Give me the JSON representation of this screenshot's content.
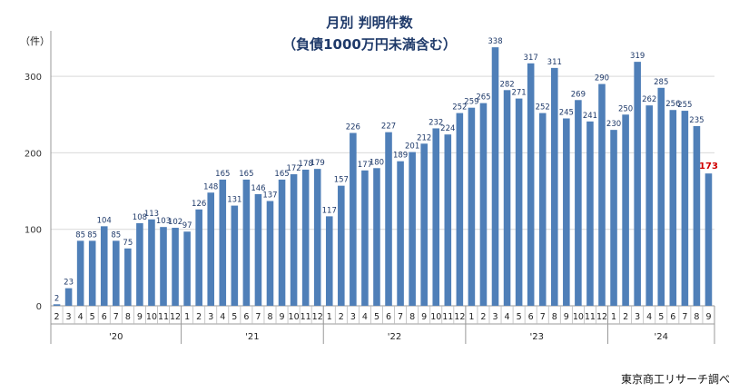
{
  "chart_data": {
    "type": "bar",
    "title": "月別 判明件数",
    "subtitle": "（負債1000万円未満含む）",
    "ylabel": "（件）",
    "ylim": [
      0,
      350
    ],
    "yticks": [
      0,
      100,
      200,
      300
    ],
    "grid": true,
    "source": "東京商工リサーチ調べ",
    "bar_color": "#4f7fb8",
    "highlight_color": "#d00000",
    "years": [
      {
        "label": "'20",
        "months": [
          "2",
          "3",
          "4",
          "5",
          "6",
          "7",
          "8",
          "9",
          "10",
          "11",
          "12"
        ]
      },
      {
        "label": "'21",
        "months": [
          "1",
          "2",
          "3",
          "4",
          "5",
          "6",
          "7",
          "8",
          "9",
          "10",
          "11",
          "12"
        ]
      },
      {
        "label": "'22",
        "months": [
          "1",
          "2",
          "3",
          "4",
          "5",
          "6",
          "7",
          "8",
          "9",
          "10",
          "11",
          "12"
        ]
      },
      {
        "label": "'23",
        "months": [
          "1",
          "2",
          "3",
          "4",
          "5",
          "6",
          "7",
          "8",
          "9",
          "10",
          "11",
          "12"
        ]
      },
      {
        "label": "'24",
        "months": [
          "1",
          "2",
          "3",
          "4",
          "5",
          "6",
          "7",
          "8",
          "9"
        ]
      }
    ],
    "values": [
      2,
      23,
      85,
      85,
      104,
      85,
      75,
      108,
      113,
      103,
      102,
      97,
      126,
      148,
      165,
      131,
      165,
      146,
      137,
      165,
      172,
      178,
      179,
      117,
      157,
      226,
      177,
      180,
      227,
      189,
      201,
      212,
      232,
      224,
      252,
      259,
      265,
      338,
      282,
      271,
      317,
      252,
      311,
      245,
      269,
      241,
      290,
      230,
      250,
      319,
      262,
      285,
      256,
      255,
      235,
      173
    ],
    "highlight_last": true
  }
}
